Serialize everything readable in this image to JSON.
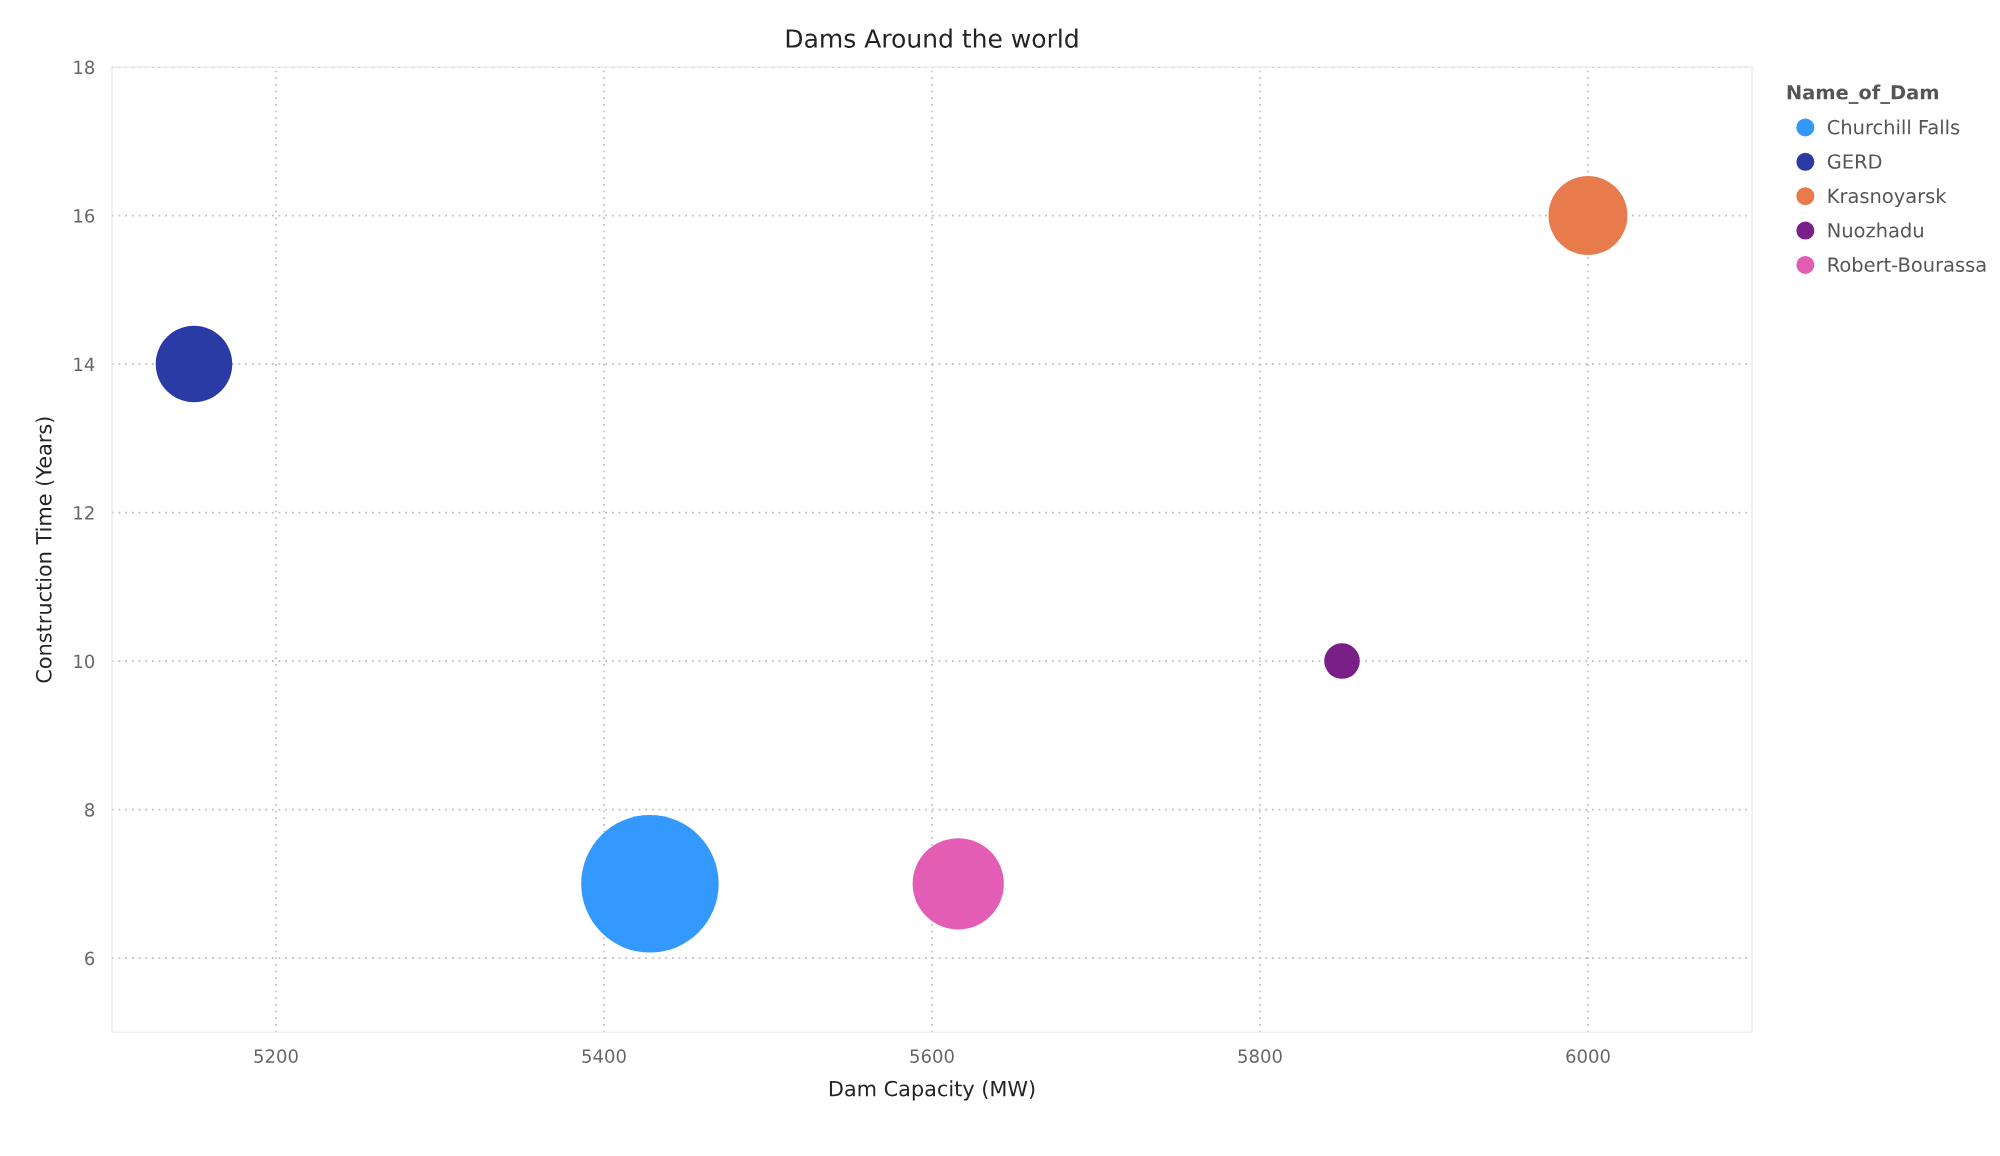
{
  "chart_data": {
    "type": "bubble",
    "title": "Dams Around the world",
    "xlabel": "Dam Capacity (MW)",
    "ylabel": "Construction Time (Years)",
    "legend_title": "Name_of_Dam",
    "series": [
      {
        "name": "Churchill Falls",
        "color": "#3399ff",
        "x": [
          5428
        ],
        "values": [
          7
        ],
        "sizes": [
          1
        ]
      },
      {
        "name": "GERD",
        "color": "#2b3ba6",
        "x": [
          5150
        ],
        "values": [
          14
        ],
        "sizes": [
          0.31
        ]
      },
      {
        "name": "Krasnoyarsk",
        "color": "#e87b4b",
        "x": [
          6000
        ],
        "values": [
          16
        ],
        "sizes": [
          0.33
        ]
      },
      {
        "name": "Nuozhadu",
        "color": "#7a1f88",
        "x": [
          5850
        ],
        "values": [
          10
        ],
        "sizes": [
          0.067
        ]
      },
      {
        "name": "Robert-Bourassa",
        "color": "#e35db4",
        "x": [
          5616
        ],
        "values": [
          7
        ],
        "sizes": [
          0.44
        ]
      }
    ],
    "xlim": [
      5100,
      6100
    ],
    "xticks": [
      5200,
      5400,
      5600,
      5800,
      6000
    ],
    "ylim": [
      5,
      18
    ],
    "yticks": [
      6,
      8,
      10,
      12,
      14,
      16,
      18
    ],
    "grid": true,
    "legend": "top right"
  }
}
